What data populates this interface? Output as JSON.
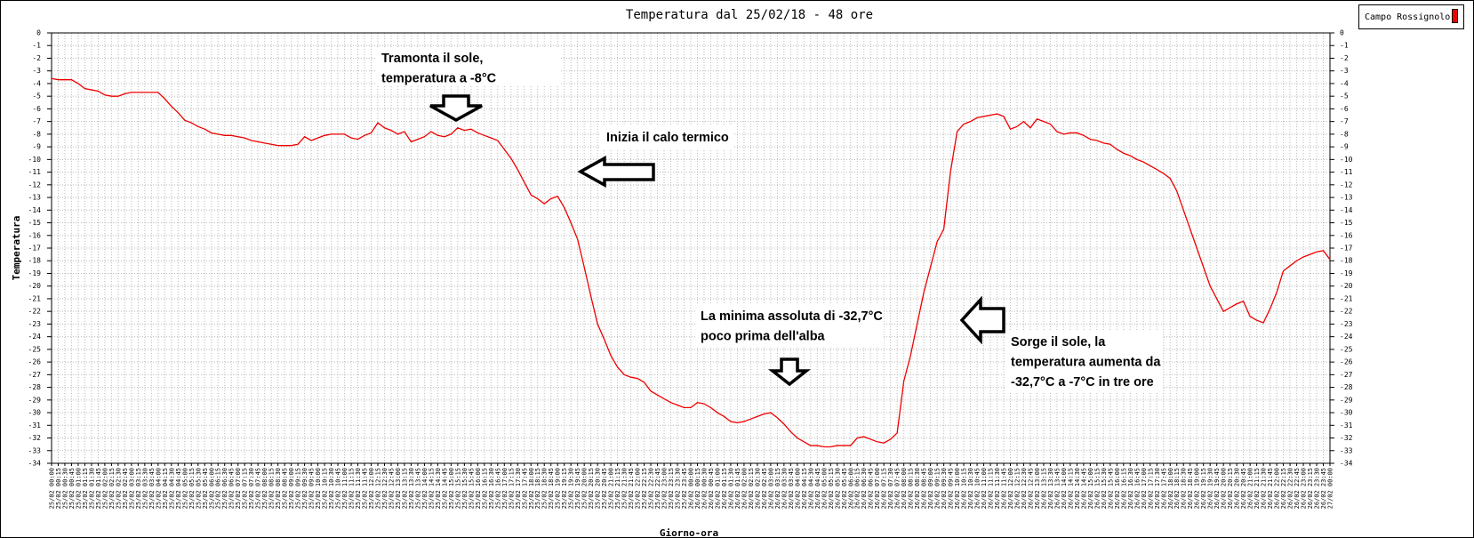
{
  "chart_data": {
    "type": "line",
    "title": "Temperatura dal 25/02/18 - 48 ore",
    "y_label": "Temperatura",
    "x_label": "Giorno-ora",
    "ylim": [
      -34,
      0
    ],
    "yticks": [
      0,
      -1,
      -2,
      -3,
      -4,
      -5,
      -6,
      -7,
      -8,
      -9,
      -10,
      -11,
      -12,
      -13,
      -14,
      -15,
      -16,
      -17,
      -18,
      -19,
      -20,
      -21,
      -22,
      -23,
      -24,
      -25,
      -26,
      -27,
      -28,
      -29,
      -30,
      -31,
      -32,
      -33,
      -34
    ],
    "grid": true,
    "legend": "top-right",
    "annotations": [
      {
        "lines": [
          "Tramonta il sole,",
          "temperatura a -8°C"
        ]
      },
      {
        "lines": [
          "Inizia il calo termico"
        ]
      },
      {
        "lines": [
          "La minima assoluta di -32,7°C",
          "poco prima dell'alba"
        ]
      },
      {
        "lines": [
          "Sorge il sole, la",
          "temperatura aumenta da",
          "-32,7°C a -7°C in tre ore"
        ]
      }
    ],
    "categories": [
      "25/02 00:00",
      "25/02 00:15",
      "25/02 00:30",
      "25/02 00:45",
      "25/02 01:00",
      "25/02 01:15",
      "25/02 01:30",
      "25/02 01:45",
      "25/02 02:00",
      "25/02 02:15",
      "25/02 02:30",
      "25/02 02:45",
      "25/02 03:00",
      "25/02 03:15",
      "25/02 03:30",
      "25/02 03:45",
      "25/02 04:00",
      "25/02 04:15",
      "25/02 04:30",
      "25/02 04:45",
      "25/02 05:00",
      "25/02 05:15",
      "25/02 05:30",
      "25/02 05:45",
      "25/02 06:00",
      "25/02 06:15",
      "25/02 06:30",
      "25/02 06:45",
      "25/02 07:00",
      "25/02 07:15",
      "25/02 07:30",
      "25/02 07:45",
      "25/02 08:00",
      "25/02 08:15",
      "25/02 08:30",
      "25/02 08:45",
      "25/02 09:00",
      "25/02 09:15",
      "25/02 09:30",
      "25/02 09:45",
      "25/02 10:00",
      "25/02 10:15",
      "25/02 10:30",
      "25/02 10:45",
      "25/02 11:00",
      "25/02 11:15",
      "25/02 11:30",
      "25/02 11:45",
      "25/02 12:00",
      "25/02 12:15",
      "25/02 12:30",
      "25/02 12:45",
      "25/02 13:00",
      "25/02 13:15",
      "25/02 13:30",
      "25/02 13:45",
      "25/02 14:00",
      "25/02 14:15",
      "25/02 14:30",
      "25/02 14:45",
      "25/02 15:00",
      "25/02 15:15",
      "25/02 15:30",
      "25/02 15:45",
      "25/02 16:00",
      "25/02 16:15",
      "25/02 16:30",
      "25/02 16:45",
      "25/02 17:00",
      "25/02 17:15",
      "25/02 17:30",
      "25/02 17:45",
      "25/02 18:00",
      "25/02 18:15",
      "25/02 18:30",
      "25/02 18:45",
      "25/02 19:00",
      "25/02 19:15",
      "25/02 19:30",
      "25/02 19:45",
      "25/02 20:00",
      "25/02 20:15",
      "25/02 20:30",
      "25/02 20:45",
      "25/02 21:00",
      "25/02 21:15",
      "25/02 21:30",
      "25/02 21:45",
      "25/02 22:00",
      "25/02 22:15",
      "25/02 22:30",
      "25/02 22:45",
      "25/02 23:00",
      "25/02 23:15",
      "25/02 23:30",
      "25/02 23:45",
      "26/02 00:00",
      "26/02 00:15",
      "26/02 00:30",
      "26/02 00:45",
      "26/02 01:00",
      "26/02 01:15",
      "26/02 01:30",
      "26/02 01:45",
      "26/02 02:00",
      "26/02 02:15",
      "26/02 02:30",
      "26/02 02:45",
      "26/02 03:00",
      "26/02 03:15",
      "26/02 03:30",
      "26/02 03:45",
      "26/02 04:00",
      "26/02 04:15",
      "26/02 04:30",
      "26/02 04:45",
      "26/02 05:00",
      "26/02 05:15",
      "26/02 05:30",
      "26/02 05:45",
      "26/02 06:00",
      "26/02 06:15",
      "26/02 06:30",
      "26/02 06:45",
      "26/02 07:00",
      "26/02 07:15",
      "26/02 07:30",
      "26/02 07:45",
      "26/02 08:00",
      "26/02 08:15",
      "26/02 08:30",
      "26/02 08:45",
      "26/02 09:00",
      "26/02 09:15",
      "26/02 09:30",
      "26/02 09:45",
      "26/02 10:00",
      "26/02 10:15",
      "26/02 10:30",
      "26/02 10:45",
      "26/02 11:00",
      "26/02 11:15",
      "26/02 11:30",
      "26/02 11:45",
      "26/02 12:00",
      "26/02 12:15",
      "26/02 12:30",
      "26/02 12:45",
      "26/02 13:00",
      "26/02 13:15",
      "26/02 13:30",
      "26/02 13:45",
      "26/02 14:00",
      "26/02 14:15",
      "26/02 14:30",
      "26/02 14:45",
      "26/02 15:00",
      "26/02 15:15",
      "26/02 15:30",
      "26/02 15:45",
      "26/02 16:00",
      "26/02 16:15",
      "26/02 16:30",
      "26/02 16:45",
      "26/02 17:00",
      "26/02 17:15",
      "26/02 17:30",
      "26/02 17:45",
      "26/02 18:00",
      "26/02 18:15",
      "26/02 18:30",
      "26/02 18:45",
      "26/02 19:00",
      "26/02 19:15",
      "26/02 19:30",
      "26/02 19:45",
      "26/02 20:00",
      "26/02 20:15",
      "26/02 20:30",
      "26/02 20:45",
      "26/02 21:00",
      "26/02 21:15",
      "26/02 21:30",
      "26/02 21:45",
      "26/02 22:00",
      "26/02 22:15",
      "26/02 22:30",
      "26/02 22:45",
      "26/02 23:00",
      "26/02 23:15",
      "26/02 23:30",
      "26/02 23:45",
      "27/02 00:00"
    ],
    "series": [
      {
        "name": "Campo Rossignolo",
        "color": "#ee0000",
        "values": [
          -3.6,
          -3.7,
          -3.7,
          -3.7,
          -4.0,
          -4.4,
          -4.5,
          -4.6,
          -4.9,
          -5.0,
          -5.0,
          -4.8,
          -4.7,
          -4.7,
          -4.7,
          -4.7,
          -4.7,
          -5.2,
          -5.8,
          -6.3,
          -6.9,
          -7.1,
          -7.4,
          -7.6,
          -7.9,
          -8.0,
          -8.1,
          -8.1,
          -8.2,
          -8.3,
          -8.5,
          -8.6,
          -8.7,
          -8.8,
          -8.9,
          -8.9,
          -8.9,
          -8.8,
          -8.2,
          -8.5,
          -8.3,
          -8.1,
          -8.0,
          -8.0,
          -8.0,
          -8.3,
          -8.4,
          -8.1,
          -7.9,
          -7.1,
          -7.5,
          -7.7,
          -8.0,
          -7.8,
          -8.6,
          -8.4,
          -8.2,
          -7.8,
          -8.1,
          -8.2,
          -8.0,
          -7.5,
          -7.7,
          -7.6,
          -7.9,
          -8.1,
          -8.3,
          -8.5,
          -9.2,
          -9.9,
          -10.8,
          -11.8,
          -12.8,
          -13.1,
          -13.5,
          -13.1,
          -12.9,
          -13.8,
          -15.0,
          -16.3,
          -18.5,
          -20.8,
          -23.0,
          -24.2,
          -25.5,
          -26.4,
          -27.0,
          -27.2,
          -27.3,
          -27.6,
          -28.3,
          -28.6,
          -28.9,
          -29.2,
          -29.4,
          -29.6,
          -29.6,
          -29.2,
          -29.3,
          -29.6,
          -30.0,
          -30.3,
          -30.7,
          -30.8,
          -30.7,
          -30.5,
          -30.3,
          -30.1,
          -30.0,
          -30.4,
          -30.9,
          -31.5,
          -32.0,
          -32.3,
          -32.6,
          -32.6,
          -32.7,
          -32.7,
          -32.6,
          -32.6,
          -32.6,
          -32.0,
          -31.9,
          -32.1,
          -32.3,
          -32.4,
          -32.1,
          -31.6,
          -27.5,
          -25.5,
          -23.0,
          -20.5,
          -18.5,
          -16.5,
          -15.5,
          -11.0,
          -7.8,
          -7.2,
          -7.0,
          -6.7,
          -6.6,
          -6.5,
          -6.4,
          -6.6,
          -7.6,
          -7.4,
          -7.0,
          -7.5,
          -6.8,
          -7.0,
          -7.2,
          -7.8,
          -8.0,
          -7.9,
          -7.9,
          -8.1,
          -8.4,
          -8.5,
          -8.7,
          -8.8,
          -9.2,
          -9.5,
          -9.7,
          -10.0,
          -10.2,
          -10.5,
          -10.8,
          -11.1,
          -11.5,
          -12.5,
          -14.0,
          -15.5,
          -17.0,
          -18.5,
          -20.0,
          -21.0,
          -22.0,
          -21.7,
          -21.4,
          -21.2,
          -22.4,
          -22.7,
          -22.9,
          -21.8,
          -20.5,
          -18.8,
          -18.4,
          -18.0,
          -17.7,
          -17.5,
          -17.3,
          -17.2,
          -17.9
        ]
      }
    ]
  }
}
